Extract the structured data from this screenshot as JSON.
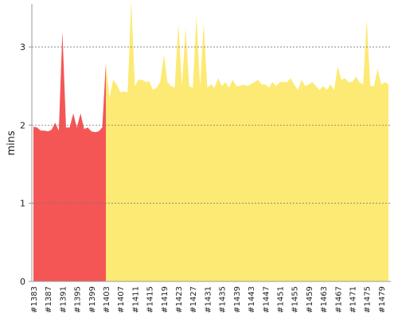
{
  "chart_data": {
    "type": "area",
    "ylabel": "mins",
    "categories": [
      "#1383",
      null,
      null,
      null,
      "#1387",
      null,
      null,
      null,
      "#1391",
      null,
      null,
      null,
      "#1395",
      null,
      null,
      null,
      "#1399",
      null,
      null,
      null,
      "#1403",
      null,
      null,
      null,
      "#1407",
      null,
      null,
      null,
      "#1411",
      null,
      null,
      null,
      "#1415",
      null,
      null,
      null,
      "#1419",
      null,
      null,
      null,
      "#1423",
      null,
      null,
      null,
      "#1427",
      null,
      null,
      null,
      "#1431",
      null,
      null,
      null,
      "#1435",
      null,
      null,
      null,
      "#1439",
      null,
      null,
      null,
      "#1443",
      null,
      null,
      null,
      "#1447",
      null,
      null,
      null,
      "#1451",
      null,
      null,
      null,
      "#1455",
      null,
      null,
      null,
      "#1459",
      null,
      null,
      null,
      "#1463",
      null,
      null,
      null,
      "#1467",
      null,
      null,
      null,
      "#1471",
      null,
      null,
      null,
      "#1475",
      null,
      null,
      null,
      "#1479",
      null,
      null
    ],
    "series": [
      {
        "color": "#f45656",
        "values": [
          1.98,
          1.97,
          1.93,
          1.93,
          1.92,
          1.94,
          2.03,
          1.93,
          3.2,
          1.97,
          1.97,
          2.15,
          1.97,
          2.15,
          1.95,
          1.97,
          1.92,
          1.91,
          1.92,
          1.97,
          2.8,
          null,
          null,
          null,
          null,
          null,
          null,
          null,
          null,
          null,
          null,
          null,
          null,
          null,
          null,
          null,
          null,
          null,
          null,
          null,
          null,
          null,
          null,
          null,
          null,
          null,
          null,
          null,
          null,
          null,
          null,
          null,
          null,
          null,
          null,
          null,
          null,
          null,
          null,
          null,
          null,
          null,
          null,
          null,
          null,
          null,
          null,
          null,
          null,
          null,
          null,
          null,
          null,
          null,
          null,
          null,
          null,
          null,
          null,
          null,
          null,
          null,
          null,
          null,
          null,
          null,
          null,
          null,
          null,
          null,
          null,
          null,
          null,
          null,
          null,
          null,
          null,
          null,
          null
        ]
      },
      {
        "color": "#fdea74",
        "values": [
          null,
          null,
          null,
          null,
          null,
          null,
          null,
          null,
          null,
          null,
          null,
          null,
          null,
          null,
          null,
          null,
          null,
          null,
          null,
          null,
          null,
          2.35,
          2.58,
          2.52,
          2.42,
          2.43,
          2.42,
          3.6,
          2.5,
          2.58,
          2.58,
          2.55,
          2.56,
          2.45,
          2.48,
          2.55,
          2.9,
          2.55,
          2.5,
          2.48,
          3.3,
          2.5,
          3.25,
          2.5,
          2.48,
          3.4,
          2.5,
          3.3,
          2.48,
          2.52,
          2.48,
          2.6,
          2.5,
          2.55,
          2.48,
          2.58,
          2.5,
          2.5,
          2.52,
          2.5,
          2.52,
          2.55,
          2.58,
          2.52,
          2.52,
          2.48,
          2.55,
          2.5,
          2.55,
          2.55,
          2.55,
          2.6,
          2.52,
          2.45,
          2.58,
          2.5,
          2.52,
          2.55,
          2.5,
          2.45,
          2.5,
          2.45,
          2.52,
          2.45,
          2.75,
          2.58,
          2.6,
          2.55,
          2.55,
          2.62,
          2.55,
          2.52,
          3.35,
          2.5,
          2.5,
          2.72,
          2.52,
          2.55,
          2.52
        ]
      }
    ],
    "ylim": [
      0,
      3.55
    ],
    "yticks": [
      0,
      1,
      2,
      3
    ],
    "grid": true
  }
}
